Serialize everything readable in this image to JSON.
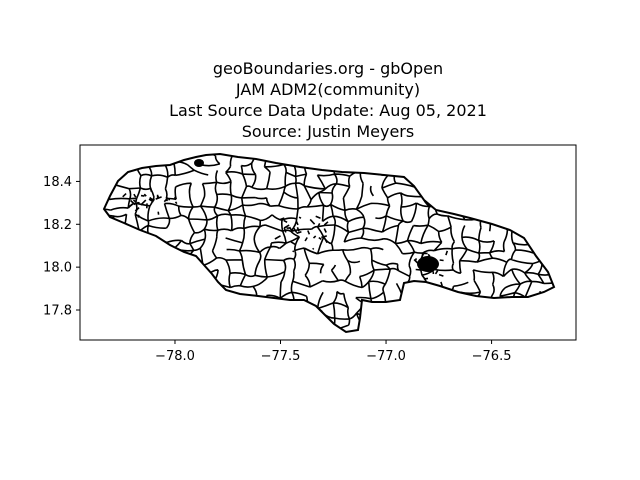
{
  "title_lines": [
    "geoBoundaries.org - gbOpen",
    "JAM ADM2(community)",
    "Last Source Data Update: Aug 05, 2021",
    "Source: Justin Meyers"
  ],
  "map": {
    "region": "Jamaica",
    "outline_color": "#000000",
    "background": "#ffffff",
    "lon_range": [
      -78.45,
      -76.1
    ],
    "lat_range": [
      17.66,
      18.57
    ],
    "x_ticks": [
      {
        "value": -78.0,
        "label": "−78.0"
      },
      {
        "value": -77.5,
        "label": "−77.5"
      },
      {
        "value": -77.0,
        "label": "−77.0"
      },
      {
        "value": -76.5,
        "label": "−76.5"
      }
    ],
    "y_ticks": [
      {
        "value": 18.4,
        "label": "18.4"
      },
      {
        "value": 18.2,
        "label": "18.2"
      },
      {
        "value": 18.0,
        "label": "18.0"
      },
      {
        "value": 17.8,
        "label": "17.8"
      }
    ]
  }
}
